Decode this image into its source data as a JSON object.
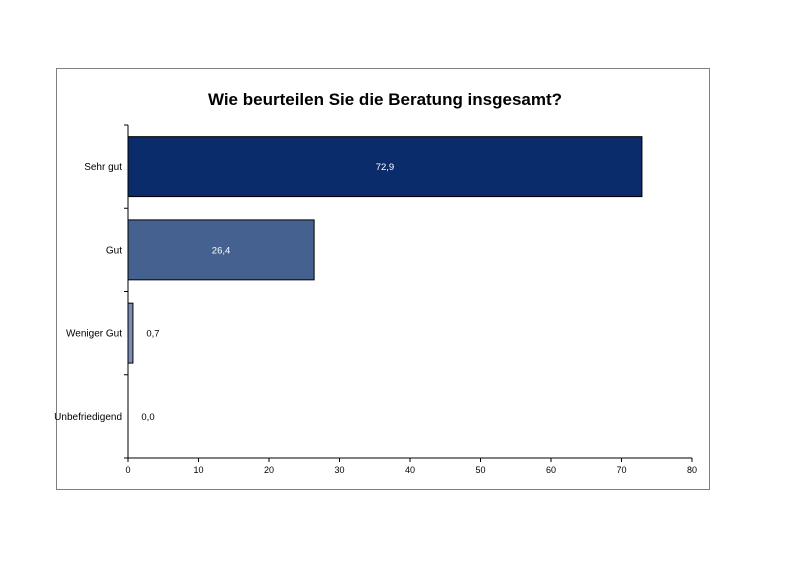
{
  "chart_data": {
    "type": "bar",
    "orientation": "horizontal",
    "title": "Wie beurteilen Sie die Beratung insgesamt?",
    "categories": [
      "Sehr gut",
      "Gut",
      "Weniger Gut",
      "Unbefriedigend"
    ],
    "values": [
      72.9,
      26.4,
      0.7,
      0.0
    ],
    "data_labels": [
      "72,9",
      "26,4",
      "0,7",
      "0,0"
    ],
    "bar_colors": [
      "#0a2c6b",
      "#44618f",
      "#7a8db8",
      "#a3b0cf"
    ],
    "label_colors": [
      "#ffffff",
      "#ffffff",
      "#000000",
      "#000000"
    ],
    "xlim": [
      0,
      80
    ],
    "x_ticks": [
      0,
      10,
      20,
      30,
      40,
      50,
      60,
      70,
      80
    ],
    "tick_labels": [
      "0",
      "10",
      "20",
      "30",
      "40",
      "50",
      "60",
      "70",
      "80"
    ],
    "xlabel": "",
    "ylabel": "",
    "grid": false,
    "legend": "none"
  }
}
